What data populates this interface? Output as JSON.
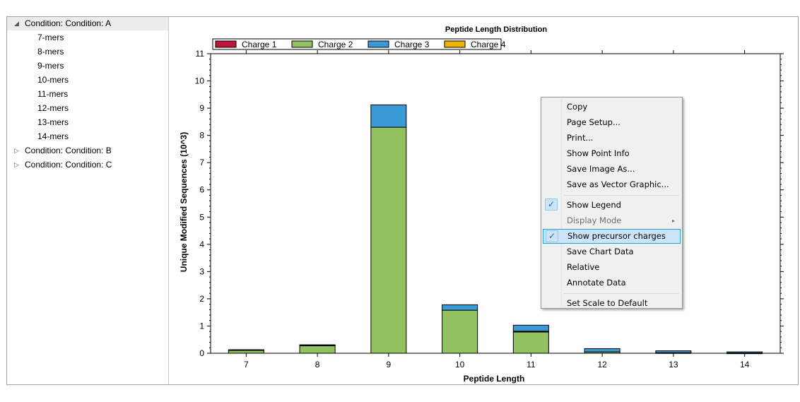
{
  "tree": {
    "items": [
      {
        "label": "Condition: Condition: A",
        "arrow": "◢",
        "icon": "expanded-arrow-icon",
        "child": false,
        "selected": true
      },
      {
        "label": "7-mers",
        "child": true
      },
      {
        "label": "8-mers",
        "child": true
      },
      {
        "label": "9-mers",
        "child": true
      },
      {
        "label": "10-mers",
        "child": true
      },
      {
        "label": "11-mers",
        "child": true
      },
      {
        "label": "12-mers",
        "child": true
      },
      {
        "label": "13-mers",
        "child": true
      },
      {
        "label": "14-mers",
        "child": true
      },
      {
        "label": "Condition: Condition: B",
        "arrow": "▷",
        "icon": "collapsed-arrow-icon",
        "child": false
      },
      {
        "label": "Condition: Condition: C",
        "arrow": "▷",
        "icon": "collapsed-arrow-icon",
        "child": false
      }
    ]
  },
  "chart_data": {
    "type": "bar",
    "stacked": true,
    "title": "Peptide Length Distribution",
    "xlabel": "Peptide Length",
    "ylabel": "Unique Modified Sequences (10^3)",
    "categories": [
      "7",
      "8",
      "9",
      "10",
      "11",
      "12",
      "13",
      "14"
    ],
    "ylim": [
      0,
      11
    ],
    "yticks": [
      "0",
      "1",
      "2",
      "3",
      "4",
      "5",
      "6",
      "7",
      "8",
      "9",
      "10",
      "11"
    ],
    "grid": false,
    "legend_position": "top-left",
    "series": [
      {
        "name": "Charge 1",
        "color": "#c0143c",
        "values": [
          0,
          0,
          0,
          0,
          0.03,
          0,
          0,
          0
        ]
      },
      {
        "name": "Charge 2",
        "color": "#92c162",
        "values": [
          0.12,
          0.28,
          8.3,
          1.58,
          0.78,
          0.05,
          0.02,
          0.01
        ]
      },
      {
        "name": "Charge 3",
        "color": "#3a9ad6",
        "values": [
          0.01,
          0.02,
          0.82,
          0.2,
          0.22,
          0.12,
          0.07,
          0.04
        ]
      },
      {
        "name": "Charge 4",
        "color": "#f0b400",
        "values": [
          0,
          0.01,
          0,
          0,
          0,
          0,
          0,
          0
        ]
      }
    ]
  },
  "context_menu": {
    "items": [
      {
        "label": "Copy"
      },
      {
        "label": "Page Setup..."
      },
      {
        "label": "Print..."
      },
      {
        "label": "Show Point Info"
      },
      {
        "label": "Save Image As..."
      },
      {
        "label": "Save as Vector Graphic..."
      },
      {
        "separator": true
      },
      {
        "label": "Show Legend",
        "checked": true,
        "check_icon": "checkmark-icon"
      },
      {
        "label": "Display Mode",
        "disabled": true,
        "submenu": true,
        "submenu_icon": "submenu-arrow-icon"
      },
      {
        "label": "Show precursor charges",
        "checked": true,
        "highlighted": true,
        "check_icon": "checkmark-icon"
      },
      {
        "label": "Save Chart Data"
      },
      {
        "label": "Relative"
      },
      {
        "label": "Annotate Data"
      },
      {
        "separator": true
      },
      {
        "label": "Set Scale to Default"
      }
    ]
  }
}
